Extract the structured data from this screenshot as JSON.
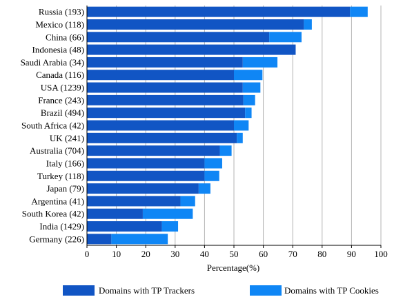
{
  "chart_data": {
    "type": "bar",
    "orientation": "horizontal",
    "stacked": true,
    "categories": [
      "Russia (193)",
      "Mexico (118)",
      "China (66)",
      "Indonesia (48)",
      "Saudi Arabia (34)",
      "Canada (116)",
      "USA (1239)",
      "France (243)",
      "Brazil (494)",
      "South Africa (42)",
      "UK (241)",
      "Australia (704)",
      "Italy (166)",
      "Turkey (118)",
      "Japan (79)",
      "Argentina (41)",
      "South Korea (42)",
      "India (1429)",
      "Germany (226)"
    ],
    "series": [
      {
        "name": "Domains with TP Trackers",
        "color": "#1155c4",
        "values": [
          89.5,
          73.8,
          62.0,
          71.0,
          53.0,
          50.0,
          53.0,
          53.2,
          53.8,
          50.0,
          51.0,
          45.2,
          40.0,
          40.0,
          38.0,
          31.8,
          19.0,
          25.5,
          8.3
        ]
      },
      {
        "name": "Domains with TP Cookies",
        "color": "#0f86f5",
        "values": [
          6.0,
          2.7,
          11.0,
          0,
          11.8,
          9.7,
          6.0,
          4.0,
          2.2,
          5.0,
          2.0,
          4.0,
          6.0,
          5.0,
          4.0,
          5.0,
          17.0,
          5.5,
          19.2
        ]
      }
    ],
    "xlabel": "Percentage(%)",
    "ylabel": "",
    "xlim": [
      0,
      100
    ],
    "xticks": [
      0,
      10,
      20,
      30,
      40,
      50,
      60,
      70,
      80,
      90,
      100
    ],
    "grid": "vertical",
    "legend": "bottom"
  }
}
